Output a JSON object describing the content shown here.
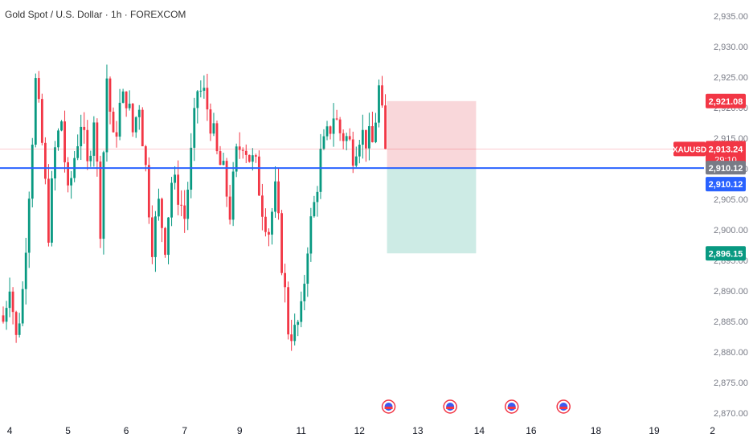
{
  "header": {
    "title": "Gold Spot / U.S. Dollar · 1h · FOREXCOM"
  },
  "chart_data": {
    "type": "candlestick",
    "symbol": "XAUUSD",
    "ylim": [
      2867,
      2937
    ],
    "y_ticks": [
      2870,
      2875,
      2880,
      2885,
      2890,
      2895,
      2900,
      2905,
      2910,
      2915,
      2920,
      2925,
      2930,
      2935
    ],
    "y_tick_labels": [
      "2,870.00",
      "2,875.00",
      "2,880.00",
      "2,885.00",
      "2,890.00",
      "2,895.00",
      "2,900.00",
      "2,905.00",
      "2,910.00",
      "2,915.00",
      "2,920.00",
      "2,925.00",
      "2,930.00",
      "2,935.00"
    ],
    "x_labels": [
      {
        "label": "4",
        "bar": 2
      },
      {
        "label": "5",
        "bar": 20
      },
      {
        "label": "6",
        "bar": 38
      },
      {
        "label": "7",
        "bar": 56
      },
      {
        "label": "9",
        "bar": 73
      },
      {
        "label": "11",
        "bar": 92
      },
      {
        "label": "12",
        "bar": 110
      },
      {
        "label": "13",
        "bar": 128
      },
      {
        "label": "14",
        "bar": 147
      },
      {
        "label": "16",
        "bar": 163
      },
      {
        "label": "18",
        "bar": 183
      },
      {
        "label": "19",
        "bar": 201
      },
      {
        "label": "2",
        "bar": 219
      }
    ],
    "keypoints": [
      [
        0,
        2885
      ],
      [
        2,
        2892
      ],
      [
        4,
        2882
      ],
      [
        6,
        2890
      ],
      [
        8,
        2907
      ],
      [
        10,
        2924
      ],
      [
        12,
        2914
      ],
      [
        14,
        2900
      ],
      [
        16,
        2913
      ],
      [
        18,
        2918
      ],
      [
        20,
        2905
      ],
      [
        22,
        2912
      ],
      [
        24,
        2918
      ],
      [
        26,
        2910
      ],
      [
        28,
        2919
      ],
      [
        30,
        2901
      ],
      [
        32,
        2925
      ],
      [
        34,
        2914
      ],
      [
        36,
        2920
      ],
      [
        38,
        2922
      ],
      [
        40,
        2916
      ],
      [
        42,
        2921
      ],
      [
        44,
        2910
      ],
      [
        46,
        2898
      ],
      [
        48,
        2904
      ],
      [
        50,
        2898
      ],
      [
        52,
        2908
      ],
      [
        54,
        2906
      ],
      [
        56,
        2902
      ],
      [
        58,
        2912
      ],
      [
        60,
        2923
      ],
      [
        62,
        2922
      ],
      [
        64,
        2918
      ],
      [
        66,
        2912
      ],
      [
        68,
        2909
      ],
      [
        70,
        2903
      ],
      [
        72,
        2912
      ],
      [
        74,
        2915
      ],
      [
        76,
        2912
      ],
      [
        78,
        2910
      ],
      [
        80,
        2904
      ],
      [
        82,
        2900
      ],
      [
        84,
        2906
      ],
      [
        86,
        2895
      ],
      [
        88,
        2884
      ],
      [
        90,
        2883
      ],
      [
        92,
        2886
      ],
      [
        94,
        2898
      ],
      [
        96,
        2904
      ],
      [
        98,
        2912
      ],
      [
        100,
        2915
      ],
      [
        102,
        2919
      ],
      [
        104,
        2916
      ],
      [
        106,
        2915
      ],
      [
        108,
        2913
      ],
      [
        110,
        2916
      ],
      [
        112,
        2915
      ],
      [
        114,
        2914
      ],
      [
        116,
        2923
      ],
      [
        118,
        2913.24
      ]
    ],
    "n_bars": 119,
    "current_price": 2913.24,
    "current_price_label": "2,913.24",
    "countdown": "29:10",
    "horizontal_line": 2910.12,
    "horizontal_line_label": "2,910.12",
    "gray_label": "2,910.12",
    "position": {
      "type": "short",
      "entry": 2910.12,
      "stop": 2921.08,
      "target": 2896.15,
      "start_bar": 119,
      "end_bar": 146,
      "stop_label": "2,921.08",
      "target_label": "2,896.15"
    },
    "event_bars": [
      119,
      138,
      157,
      173
    ],
    "colors": {
      "up": "#089981",
      "down": "#f23645",
      "hline": "#2962ff",
      "stop_zone": "#f7c9cd",
      "target_zone": "#c4e8e1",
      "gray_tag": "#787b86",
      "axis_text": "#131722"
    }
  }
}
